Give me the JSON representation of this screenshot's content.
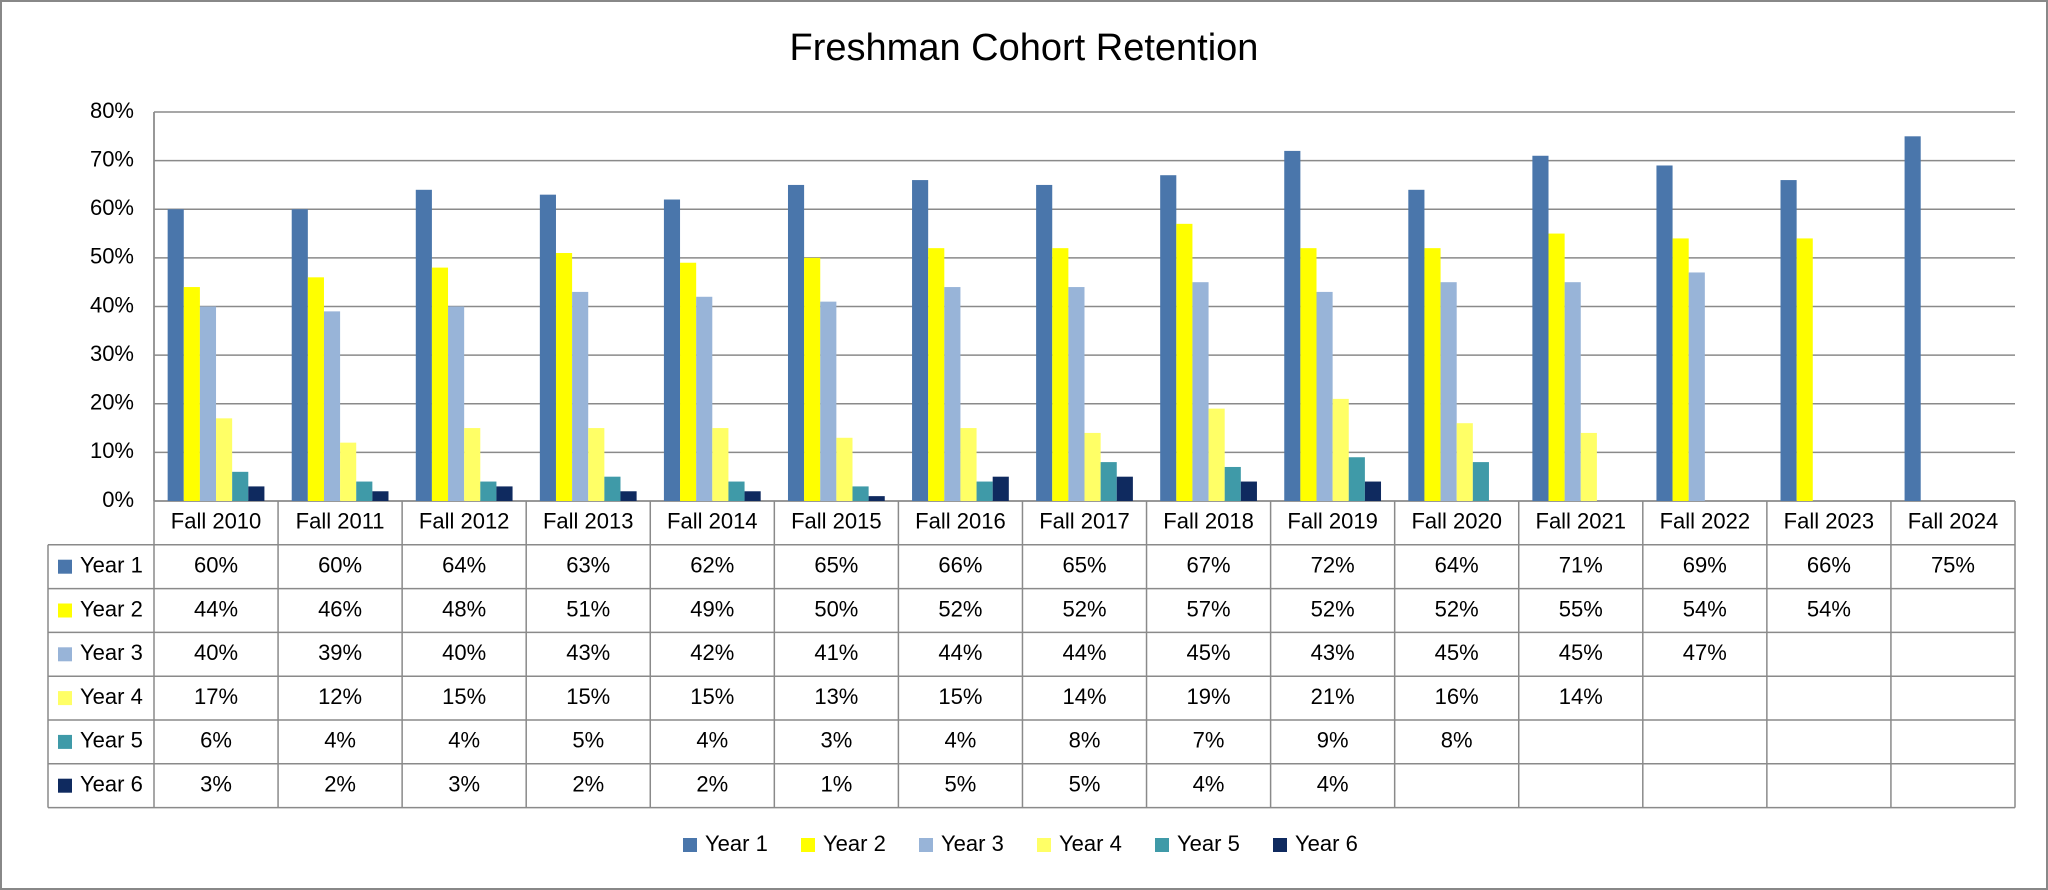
{
  "chart_data": {
    "type": "bar",
    "title": "Freshman Cohort Retention",
    "categories": [
      "Fall 2010",
      "Fall 2011",
      "Fall 2012",
      "Fall 2013",
      "Fall 2014",
      "Fall 2015",
      "Fall 2016",
      "Fall 2017",
      "Fall 2018",
      "Fall 2019",
      "Fall 2020",
      "Fall 2021",
      "Fall 2022",
      "Fall 2023",
      "Fall 2024"
    ],
    "series": [
      {
        "name": "Year 1",
        "color": "#4a76ab",
        "values": [
          60,
          60,
          64,
          63,
          62,
          65,
          66,
          65,
          67,
          72,
          64,
          71,
          69,
          66,
          75
        ],
        "value_labels": [
          "60%",
          "60%",
          "64%",
          "63%",
          "62%",
          "65%",
          "66%",
          "65%",
          "67%",
          "72%",
          "64%",
          "71%",
          "69%",
          "66%",
          "75%"
        ]
      },
      {
        "name": "Year 2",
        "color": "#ffff00",
        "values": [
          44,
          46,
          48,
          51,
          49,
          50,
          52,
          52,
          57,
          52,
          52,
          55,
          54,
          54,
          null
        ],
        "value_labels": [
          "44%",
          "46%",
          "48%",
          "51%",
          "49%",
          "50%",
          "52%",
          "52%",
          "57%",
          "52%",
          "52%",
          "55%",
          "54%",
          "54%",
          null
        ]
      },
      {
        "name": "Year 3",
        "color": "#98b4d8",
        "values": [
          40,
          39,
          40,
          43,
          42,
          41,
          44,
          44,
          45,
          43,
          45,
          45,
          47,
          null,
          null
        ],
        "value_labels": [
          "40%",
          "39%",
          "40%",
          "43%",
          "42%",
          "41%",
          "44%",
          "44%",
          "45%",
          "43%",
          "45%",
          "45%",
          "47%",
          null,
          null
        ]
      },
      {
        "name": "Year 4",
        "color": "#ffff66",
        "values": [
          17,
          12,
          15,
          15,
          15,
          13,
          15,
          14,
          19,
          21,
          16,
          14,
          null,
          null,
          null
        ],
        "value_labels": [
          "17%",
          "12%",
          "15%",
          "15%",
          "15%",
          "13%",
          "15%",
          "14%",
          "19%",
          "21%",
          "16%",
          "14%",
          null,
          null,
          null
        ]
      },
      {
        "name": "Year 5",
        "color": "#3f9aa8",
        "values": [
          6,
          4,
          4,
          5,
          4,
          3,
          4,
          8,
          7,
          9,
          8,
          null,
          null,
          null,
          null
        ],
        "value_labels": [
          "6%",
          "4%",
          "4%",
          "5%",
          "4%",
          "3%",
          "4%",
          "8%",
          "7%",
          "9%",
          "8%",
          null,
          null,
          null,
          null
        ]
      },
      {
        "name": "Year 6",
        "color": "#0f2a5f",
        "values": [
          3,
          2,
          3,
          2,
          2,
          1,
          5,
          5,
          4,
          4,
          null,
          null,
          null,
          null,
          null
        ],
        "value_labels": [
          "3%",
          "2%",
          "3%",
          "2%",
          "2%",
          "1%",
          "5%",
          "5%",
          "4%",
          "4%",
          null,
          null,
          null,
          null,
          null
        ]
      }
    ],
    "ylim": [
      0,
      80
    ],
    "yticks": [
      {
        "value": 0,
        "label": "0%"
      },
      {
        "value": 10,
        "label": "10%"
      },
      {
        "value": 20,
        "label": "20%"
      },
      {
        "value": 30,
        "label": "30%"
      },
      {
        "value": 40,
        "label": "40%"
      },
      {
        "value": 50,
        "label": "50%"
      },
      {
        "value": 60,
        "label": "60%"
      },
      {
        "value": 70,
        "label": "70%"
      },
      {
        "value": 80,
        "label": "80%"
      }
    ],
    "grid": true
  }
}
